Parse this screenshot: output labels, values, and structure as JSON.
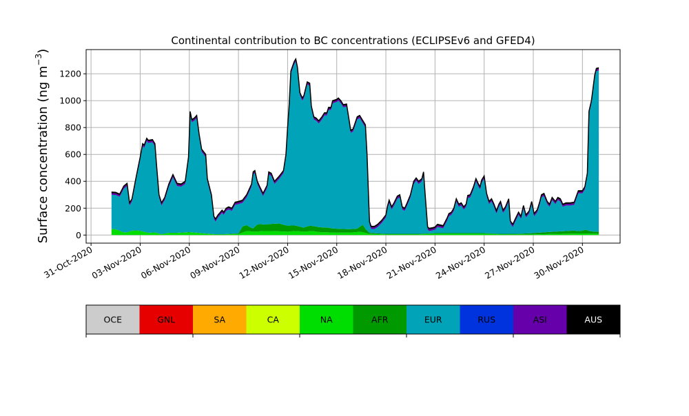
{
  "chart_data": {
    "type": "area",
    "title": "Continental contribution to BC concentrations (ECLIPSEv6 and GFED4)",
    "ylabel_main": "Surface concentration (ng m",
    "ylabel_sup": "−3",
    "ylabel_close": ")",
    "xlabel": "",
    "ylim": [
      -60,
      1380
    ],
    "xlim": [
      -0.3,
      32.3
    ],
    "grid": true,
    "stacked": true,
    "x_unit": "days since 31-Oct-2020 00:00",
    "x_ticks": [
      {
        "x": 0,
        "label": "31-Oct-2020"
      },
      {
        "x": 3,
        "label": "03-Nov-2020"
      },
      {
        "x": 6,
        "label": "06-Nov-2020"
      },
      {
        "x": 9,
        "label": "09-Nov-2020"
      },
      {
        "x": 12,
        "label": "12-Nov-2020"
      },
      {
        "x": 15,
        "label": "15-Nov-2020"
      },
      {
        "x": 18,
        "label": "18-Nov-2020"
      },
      {
        "x": 21,
        "label": "21-Nov-2020"
      },
      {
        "x": 24,
        "label": "24-Nov-2020"
      },
      {
        "x": 27,
        "label": "27-Nov-2020"
      },
      {
        "x": 30,
        "label": "30-Nov-2020"
      }
    ],
    "y_ticks": [
      0,
      200,
      400,
      600,
      800,
      1000,
      1200
    ],
    "total": {
      "name": "Total",
      "points": [
        [
          1.25,
          320
        ],
        [
          1.5,
          318
        ],
        [
          1.75,
          305
        ],
        [
          2.0,
          365
        ],
        [
          2.2,
          385
        ],
        [
          2.35,
          240
        ],
        [
          2.5,
          270
        ],
        [
          2.75,
          430
        ],
        [
          3.0,
          580
        ],
        [
          3.15,
          680
        ],
        [
          3.25,
          670
        ],
        [
          3.4,
          720
        ],
        [
          3.5,
          705
        ],
        [
          3.75,
          710
        ],
        [
          3.9,
          680
        ],
        [
          4.0,
          520
        ],
        [
          4.15,
          300
        ],
        [
          4.3,
          240
        ],
        [
          4.5,
          280
        ],
        [
          4.75,
          380
        ],
        [
          5.0,
          450
        ],
        [
          5.25,
          385
        ],
        [
          5.5,
          380
        ],
        [
          5.75,
          400
        ],
        [
          5.95,
          580
        ],
        [
          6.05,
          920
        ],
        [
          6.15,
          860
        ],
        [
          6.3,
          870
        ],
        [
          6.45,
          890
        ],
        [
          6.6,
          750
        ],
        [
          6.75,
          640
        ],
        [
          7.0,
          600
        ],
        [
          7.1,
          420
        ],
        [
          7.35,
          300
        ],
        [
          7.5,
          140
        ],
        [
          7.6,
          120
        ],
        [
          7.75,
          150
        ],
        [
          8.0,
          185
        ],
        [
          8.1,
          170
        ],
        [
          8.25,
          200
        ],
        [
          8.4,
          210
        ],
        [
          8.6,
          200
        ],
        [
          8.8,
          245
        ],
        [
          9.0,
          250
        ],
        [
          9.25,
          260
        ],
        [
          9.5,
          300
        ],
        [
          9.8,
          380
        ],
        [
          9.9,
          470
        ],
        [
          10.0,
          480
        ],
        [
          10.15,
          400
        ],
        [
          10.3,
          360
        ],
        [
          10.5,
          310
        ],
        [
          10.75,
          370
        ],
        [
          10.85,
          470
        ],
        [
          11.0,
          460
        ],
        [
          11.2,
          400
        ],
        [
          11.35,
          420
        ],
        [
          11.5,
          440
        ],
        [
          11.75,
          480
        ],
        [
          11.9,
          600
        ],
        [
          12.0,
          800
        ],
        [
          12.1,
          980
        ],
        [
          12.2,
          1220
        ],
        [
          12.4,
          1290
        ],
        [
          12.5,
          1310
        ],
        [
          12.6,
          1250
        ],
        [
          12.75,
          1060
        ],
        [
          12.9,
          1020
        ],
        [
          13.0,
          1040
        ],
        [
          13.2,
          1140
        ],
        [
          13.35,
          1130
        ],
        [
          13.45,
          960
        ],
        [
          13.6,
          880
        ],
        [
          13.75,
          870
        ],
        [
          13.9,
          850
        ],
        [
          14.1,
          880
        ],
        [
          14.25,
          910
        ],
        [
          14.4,
          910
        ],
        [
          14.5,
          950
        ],
        [
          14.65,
          950
        ],
        [
          14.75,
          1000
        ],
        [
          15.0,
          1010
        ],
        [
          15.1,
          1020
        ],
        [
          15.25,
          1000
        ],
        [
          15.4,
          970
        ],
        [
          15.6,
          975
        ],
        [
          15.75,
          860
        ],
        [
          15.85,
          780
        ],
        [
          16.0,
          790
        ],
        [
          16.25,
          880
        ],
        [
          16.4,
          890
        ],
        [
          16.6,
          850
        ],
        [
          16.75,
          820
        ],
        [
          16.85,
          600
        ],
        [
          17.0,
          100
        ],
        [
          17.1,
          65
        ],
        [
          17.3,
          65
        ],
        [
          17.5,
          80
        ],
        [
          17.75,
          110
        ],
        [
          18.0,
          150
        ],
        [
          18.1,
          215
        ],
        [
          18.2,
          260
        ],
        [
          18.35,
          210
        ],
        [
          18.5,
          240
        ],
        [
          18.7,
          290
        ],
        [
          18.85,
          300
        ],
        [
          19.0,
          210
        ],
        [
          19.15,
          200
        ],
        [
          19.3,
          240
        ],
        [
          19.5,
          300
        ],
        [
          19.7,
          400
        ],
        [
          19.85,
          425
        ],
        [
          20.0,
          400
        ],
        [
          20.2,
          420
        ],
        [
          20.3,
          470
        ],
        [
          20.4,
          300
        ],
        [
          20.55,
          60
        ],
        [
          20.65,
          50
        ],
        [
          20.85,
          55
        ],
        [
          21.0,
          60
        ],
        [
          21.15,
          80
        ],
        [
          21.5,
          70
        ],
        [
          21.75,
          130
        ],
        [
          21.85,
          160
        ],
        [
          22.0,
          170
        ],
        [
          22.15,
          200
        ],
        [
          22.3,
          270
        ],
        [
          22.45,
          230
        ],
        [
          22.6,
          240
        ],
        [
          22.75,
          210
        ],
        [
          22.9,
          230
        ],
        [
          23.0,
          295
        ],
        [
          23.15,
          300
        ],
        [
          23.35,
          360
        ],
        [
          23.5,
          420
        ],
        [
          23.65,
          380
        ],
        [
          23.75,
          360
        ],
        [
          23.85,
          410
        ],
        [
          24.0,
          440
        ],
        [
          24.15,
          310
        ],
        [
          24.3,
          250
        ],
        [
          24.45,
          270
        ],
        [
          24.6,
          230
        ],
        [
          24.75,
          180
        ],
        [
          24.9,
          230
        ],
        [
          25.0,
          250
        ],
        [
          25.15,
          185
        ],
        [
          25.3,
          210
        ],
        [
          25.5,
          270
        ],
        [
          25.6,
          105
        ],
        [
          25.75,
          80
        ],
        [
          25.9,
          120
        ],
        [
          26.1,
          170
        ],
        [
          26.25,
          140
        ],
        [
          26.4,
          220
        ],
        [
          26.55,
          150
        ],
        [
          26.75,
          180
        ],
        [
          26.9,
          250
        ],
        [
          27.05,
          160
        ],
        [
          27.25,
          190
        ],
        [
          27.4,
          250
        ],
        [
          27.5,
          300
        ],
        [
          27.65,
          310
        ],
        [
          27.85,
          250
        ],
        [
          28.0,
          230
        ],
        [
          28.15,
          280
        ],
        [
          28.35,
          250
        ],
        [
          28.5,
          280
        ],
        [
          28.65,
          270
        ],
        [
          28.8,
          230
        ],
        [
          29.0,
          240
        ],
        [
          29.25,
          240
        ],
        [
          29.5,
          245
        ],
        [
          29.75,
          330
        ],
        [
          30.0,
          330
        ],
        [
          30.15,
          360
        ],
        [
          30.3,
          460
        ],
        [
          30.4,
          920
        ],
        [
          30.55,
          1000
        ],
        [
          30.75,
          1190
        ],
        [
          30.85,
          1240
        ],
        [
          31.0,
          1245
        ]
      ]
    },
    "na_layer": {
      "name": "NA",
      "points": [
        [
          1.25,
          45
        ],
        [
          1.5,
          42
        ],
        [
          1.75,
          30
        ],
        [
          2.0,
          18
        ],
        [
          2.25,
          20
        ],
        [
          2.6,
          35
        ],
        [
          3.0,
          30
        ],
        [
          3.25,
          22
        ],
        [
          3.5,
          15
        ],
        [
          3.9,
          18
        ],
        [
          4.3,
          5
        ],
        [
          4.75,
          15
        ],
        [
          5.25,
          15
        ],
        [
          6.0,
          20
        ],
        [
          6.5,
          15
        ],
        [
          7.0,
          10
        ],
        [
          7.5,
          5
        ],
        [
          8.0,
          4
        ],
        [
          9.0,
          8
        ],
        [
          9.5,
          30
        ],
        [
          10.0,
          25
        ],
        [
          10.5,
          30
        ],
        [
          11.0,
          30
        ],
        [
          11.5,
          28
        ],
        [
          12.0,
          25
        ],
        [
          12.5,
          30
        ],
        [
          13.0,
          25
        ],
        [
          13.5,
          30
        ],
        [
          14.0,
          22
        ],
        [
          14.5,
          20
        ],
        [
          15.0,
          18
        ],
        [
          15.5,
          18
        ],
        [
          16.0,
          20
        ],
        [
          16.5,
          25
        ],
        [
          17.0,
          8
        ],
        [
          18.0,
          5
        ],
        [
          19.0,
          5
        ],
        [
          20.0,
          5
        ],
        [
          21.0,
          10
        ],
        [
          22.0,
          10
        ],
        [
          23.0,
          10
        ],
        [
          24.0,
          10
        ],
        [
          25.0,
          5
        ],
        [
          26.0,
          5
        ],
        [
          27.0,
          5
        ],
        [
          28.0,
          8
        ],
        [
          29.0,
          10
        ],
        [
          30.0,
          12
        ],
        [
          31.0,
          10
        ]
      ]
    },
    "afr_layer": {
      "name": "AFR",
      "points": [
        [
          1.25,
          2
        ],
        [
          2.0,
          2
        ],
        [
          3.0,
          2
        ],
        [
          4.0,
          2
        ],
        [
          5.0,
          2
        ],
        [
          6.0,
          2
        ],
        [
          7.0,
          2
        ],
        [
          8.0,
          2
        ],
        [
          9.0,
          4
        ],
        [
          9.2,
          40
        ],
        [
          9.4,
          60
        ],
        [
          9.6,
          28
        ],
        [
          9.9,
          25
        ],
        [
          10.1,
          50
        ],
        [
          10.35,
          55
        ],
        [
          10.6,
          45
        ],
        [
          10.9,
          52
        ],
        [
          11.2,
          55
        ],
        [
          11.5,
          58
        ],
        [
          11.75,
          50
        ],
        [
          12.0,
          45
        ],
        [
          12.4,
          42
        ],
        [
          12.75,
          35
        ],
        [
          13.0,
          30
        ],
        [
          13.25,
          40
        ],
        [
          13.6,
          38
        ],
        [
          14.0,
          35
        ],
        [
          14.4,
          36
        ],
        [
          14.75,
          30
        ],
        [
          15.25,
          28
        ],
        [
          15.75,
          25
        ],
        [
          16.25,
          25
        ],
        [
          16.5,
          45
        ],
        [
          16.6,
          55
        ],
        [
          16.75,
          30
        ],
        [
          17.0,
          8
        ],
        [
          18.0,
          4
        ],
        [
          20.0,
          4
        ],
        [
          22.0,
          4
        ],
        [
          24.0,
          4
        ],
        [
          26.0,
          4
        ],
        [
          28.0,
          15
        ],
        [
          29.0,
          20
        ],
        [
          29.5,
          22
        ],
        [
          29.75,
          18
        ],
        [
          30.0,
          20
        ],
        [
          30.2,
          30
        ],
        [
          30.4,
          20
        ],
        [
          30.6,
          15
        ],
        [
          31.0,
          15
        ]
      ]
    },
    "asi_band": 12,
    "aus_band": 8,
    "colors": {
      "OCE": "#cccccc",
      "GNL": "#e60000",
      "SA": "#ffaa00",
      "CA": "#ccff00",
      "NA": "#00dd00",
      "AFR": "#009900",
      "EUR": "#00a3b8",
      "RUS": "#0033dd",
      "ASI": "#6600aa",
      "AUS": "#000000",
      "axis": "#000000",
      "grid": "#b0b0b0"
    }
  },
  "legend": {
    "items": [
      {
        "label": "OCE",
        "color": "#cccccc"
      },
      {
        "label": "GNL",
        "color": "#e60000"
      },
      {
        "label": "SA",
        "color": "#ffaa00"
      },
      {
        "label": "CA",
        "color": "#ccff00"
      },
      {
        "label": "NA",
        "color": "#00dd00"
      },
      {
        "label": "AFR",
        "color": "#009900"
      },
      {
        "label": "EUR",
        "color": "#00a3b8"
      },
      {
        "label": "RUS",
        "color": "#0033dd"
      },
      {
        "label": "ASI",
        "color": "#6600aa"
      },
      {
        "label": "AUS",
        "color": "#000000"
      }
    ]
  }
}
